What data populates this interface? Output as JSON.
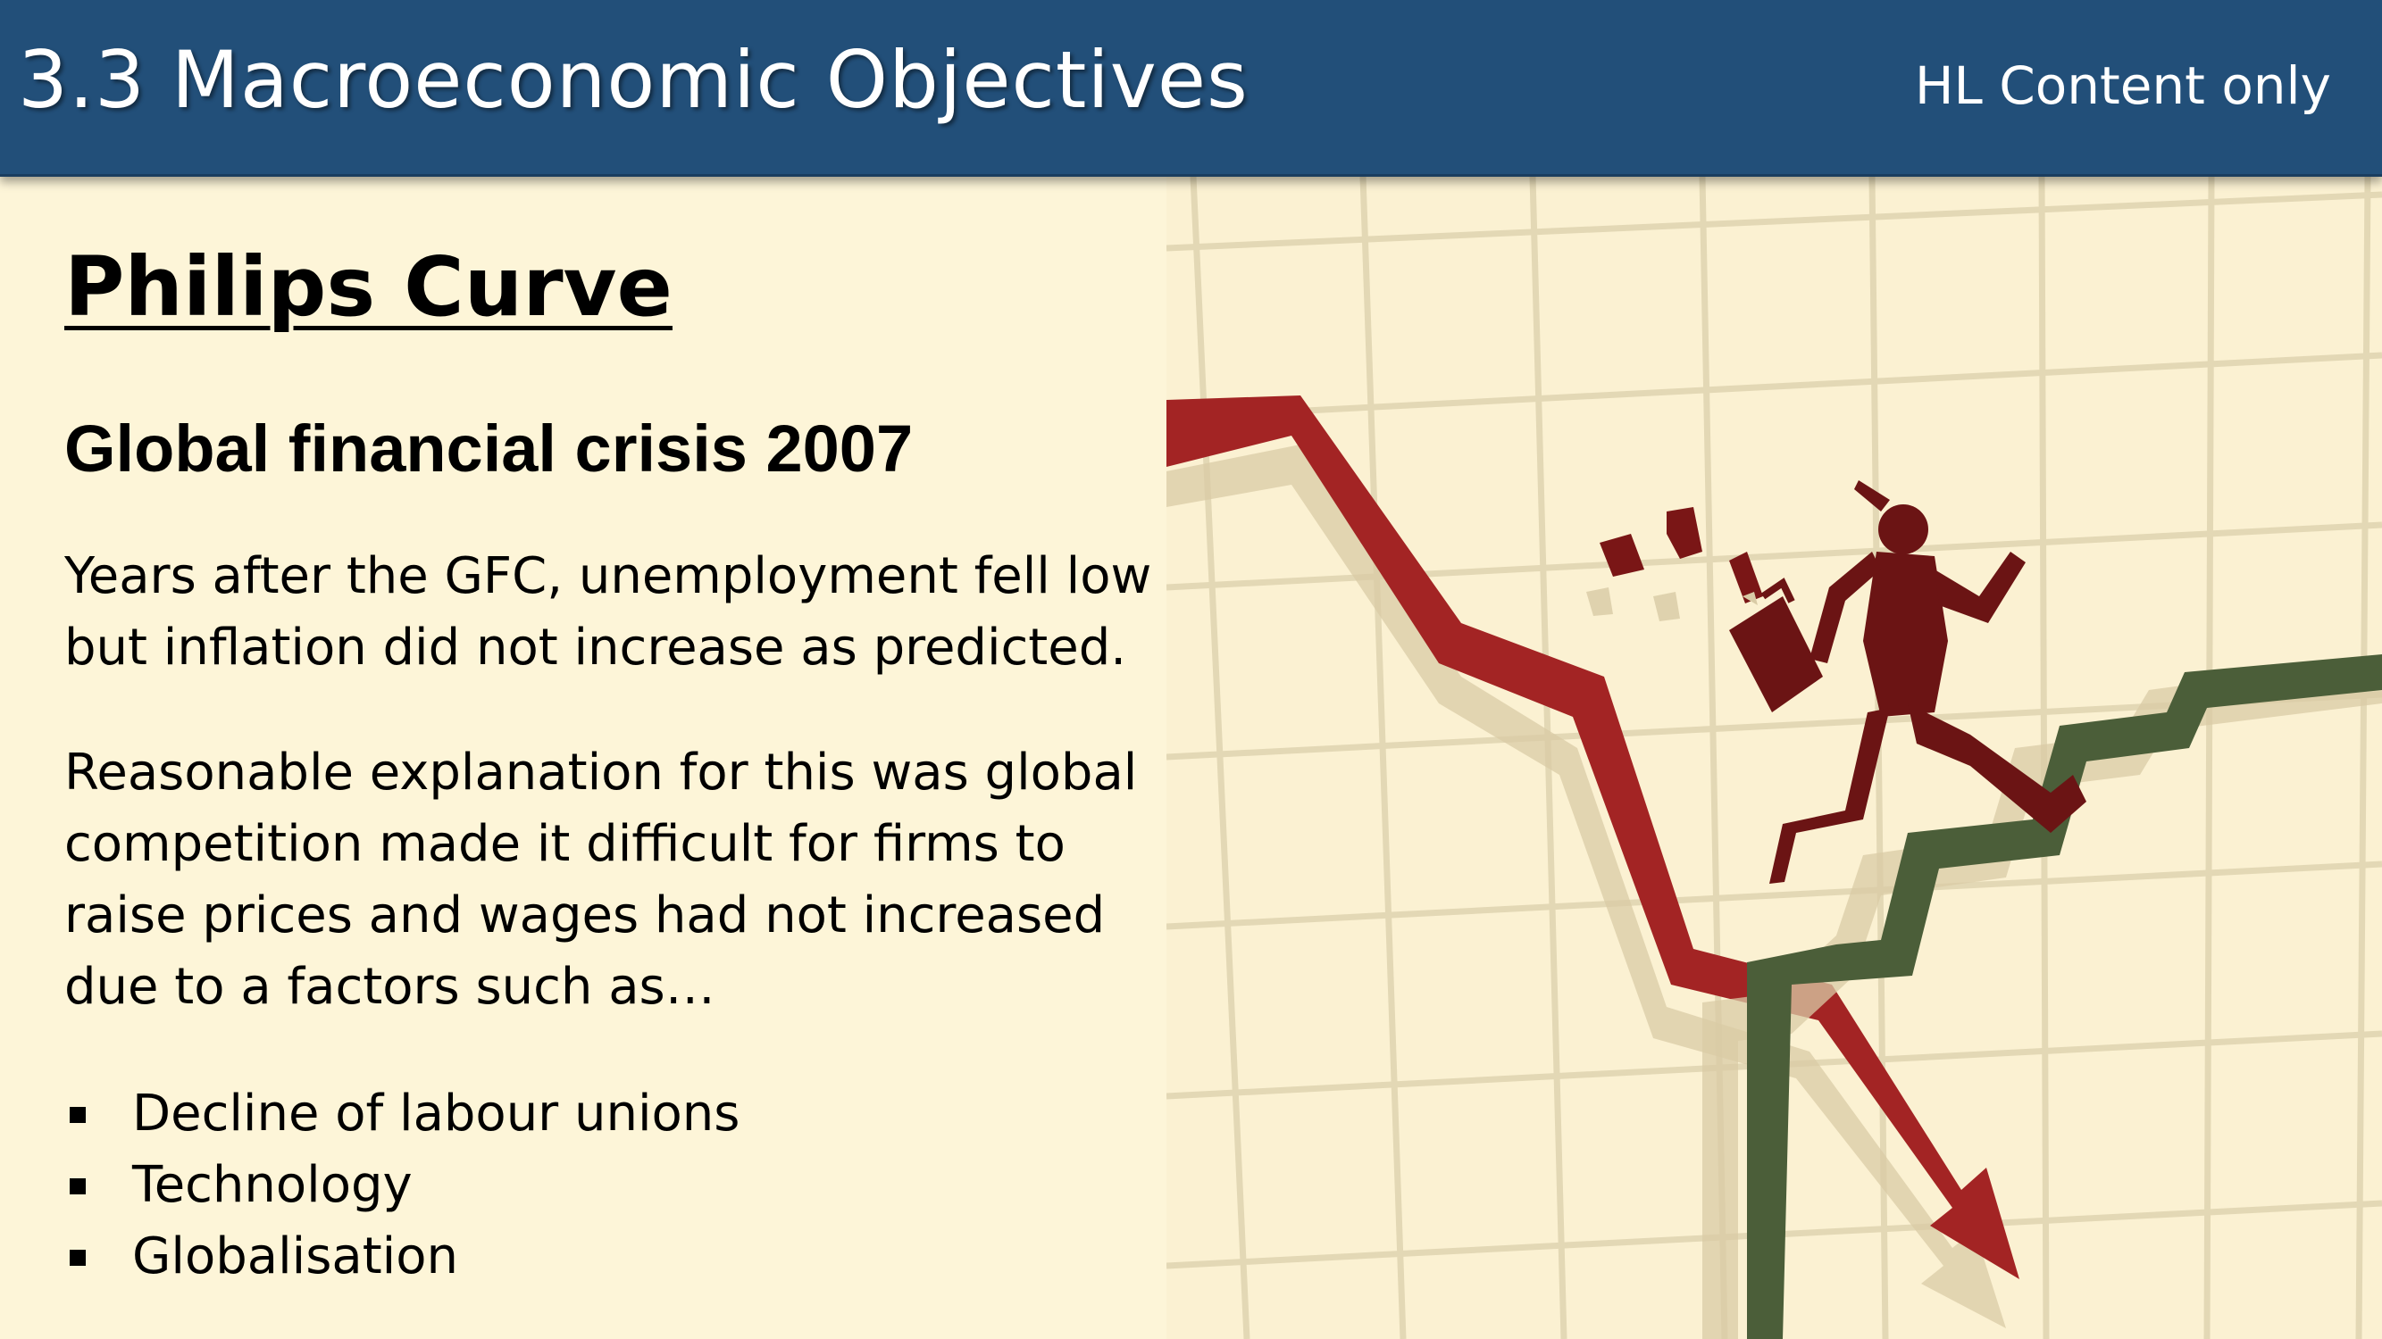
{
  "header": {
    "title": "3.3 Macroeconomic Objectives",
    "badge": "HL Content only"
  },
  "content": {
    "heading": "Philips Curve",
    "subheading": "Global financial crisis 2007",
    "paragraph1": "Years after the GFC, unemployment fell low but inflation did not increase as predicted.",
    "paragraph2": "Reasonable explanation for this was global competition made it difficult for firms to raise prices and wages had not increased due to a factors such as…",
    "bullets": [
      {
        "label": "Decline of labour unions"
      },
      {
        "label": "Technology"
      },
      {
        "label": "Globalisation"
      }
    ]
  },
  "illustration": {
    "colors": {
      "background": "#fbf1d2",
      "grid": "#e6dcbc",
      "down_arrow": "#a32424",
      "up_line": "#4b5e39",
      "figure": "#6b1414"
    }
  }
}
